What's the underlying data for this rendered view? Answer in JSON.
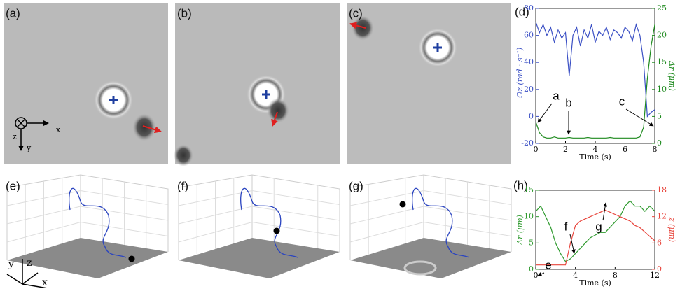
{
  "panel_labels": [
    "(a)",
    "(b)",
    "(c)",
    "(d)",
    "(e)",
    "(f)",
    "(g)",
    "(h)"
  ],
  "image_axes": {
    "z": "z",
    "x": "x",
    "y": "y"
  },
  "triad_axes": {
    "y": "y",
    "z": "z",
    "x": "x"
  },
  "chart_data": [
    {
      "type": "line",
      "xlabel": "Time (s)",
      "ylabel": "−Ωz (rad · s⁻¹)",
      "y2label": "Δr (μm)",
      "xlim": [
        0,
        8
      ],
      "xticks": [
        0,
        2,
        4,
        6,
        8
      ],
      "ylim": [
        -20,
        80
      ],
      "yticks": [
        -20,
        0,
        20,
        40,
        60,
        80
      ],
      "y2lim": [
        0,
        25
      ],
      "y2ticks": [
        0,
        5,
        10,
        15,
        20,
        25
      ],
      "x": [
        0,
        0.25,
        0.5,
        0.75,
        1,
        1.25,
        1.5,
        1.75,
        2,
        2.25,
        2.5,
        2.75,
        3,
        3.25,
        3.5,
        3.75,
        4,
        4.25,
        4.5,
        4.75,
        5,
        5.25,
        5.5,
        5.75,
        6,
        6.25,
        6.5,
        6.75,
        7,
        7.25,
        7.5,
        7.75,
        8
      ],
      "series": [
        {
          "color": "#3a4fc4",
          "values": [
            70,
            62,
            68,
            60,
            66,
            55,
            64,
            58,
            62,
            30,
            60,
            66,
            52,
            64,
            58,
            68,
            55,
            63,
            60,
            66,
            57,
            64,
            62,
            58,
            66,
            63,
            56,
            68,
            60,
            40,
            0,
            3,
            5
          ]
        },
        {
          "color": "#1e8a1e",
          "axis": "y2",
          "values": [
            4,
            2,
            1.2,
            1,
            1,
            1.2,
            1,
            1,
            1,
            1.1,
            1,
            1,
            1,
            1,
            1.1,
            1,
            1,
            1,
            1,
            1,
            1.1,
            1,
            1,
            1,
            1,
            1,
            1,
            1,
            1.2,
            3,
            12,
            18,
            22
          ]
        }
      ],
      "annotations": [
        "a",
        "b",
        "c"
      ]
    },
    {
      "type": "line",
      "xlabel": "Time (s)",
      "ylabel": "Δr (μm)",
      "y2label": "z (μm)",
      "xlim": [
        0,
        12
      ],
      "xticks": [
        0,
        4,
        8,
        12
      ],
      "ylim": [
        0,
        15
      ],
      "yticks": [
        0,
        5,
        10,
        15
      ],
      "y2lim": [
        0,
        18
      ],
      "y2ticks": [
        0,
        6,
        12,
        18
      ],
      "x": [
        0,
        0.5,
        1,
        1.5,
        2,
        2.5,
        3,
        3.5,
        4,
        4.5,
        5,
        5.5,
        6,
        6.5,
        7,
        7.5,
        8,
        8.5,
        9,
        9.5,
        10,
        10.5,
        11,
        11.5,
        12
      ],
      "series": [
        {
          "color": "#2e9a2e",
          "values": [
            11,
            12,
            10,
            8,
            5,
            3,
            1.5,
            2,
            3,
            4,
            5,
            6,
            6.5,
            7,
            7,
            8,
            9,
            10,
            12,
            13,
            12,
            12,
            11,
            12,
            11
          ]
        },
        {
          "color": "#e8453c",
          "axis": "y2",
          "values": [
            1,
            1,
            1,
            1,
            1,
            1,
            1,
            6,
            10,
            11,
            11.5,
            12,
            12.5,
            13,
            13.5,
            13,
            12.5,
            12,
            11.5,
            11,
            10,
            9.5,
            8.5,
            7.5,
            6.5
          ]
        }
      ],
      "annotations": [
        "e",
        "f",
        "g"
      ]
    }
  ]
}
